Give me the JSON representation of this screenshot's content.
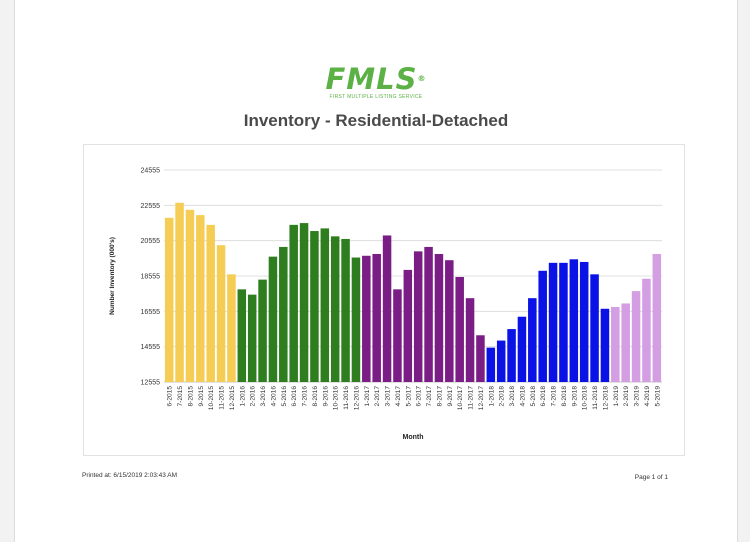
{
  "logo": {
    "mark": "FMLS",
    "reg": "®",
    "subtitle": "FIRST MULTIPLE LISTING SERVICE"
  },
  "title": "Inventory - Residential-Detached",
  "footer": {
    "printed": "Printed at: 6/15/2019 2:03:43 AM",
    "page": "Page 1 of 1"
  },
  "colors": {
    "2015": "#f5cd55",
    "2016": "#2e7d1e",
    "2017": "#7a1e86",
    "2018": "#0a12e6",
    "2019": "#d49ee2"
  },
  "chart_data": {
    "type": "bar",
    "title": "Inventory - Residential-Detached",
    "xlabel": "Month",
    "ylabel": "Number Inventory (000's)",
    "ylim": [
      12555,
      24555
    ],
    "yticks": [
      "24555",
      "22555",
      "20555",
      "18555",
      "16555",
      "14555",
      "12555"
    ],
    "grid": true,
    "categories": [
      "6-2015",
      "7-2015",
      "8-2015",
      "9-2015",
      "10-2015",
      "11-2015",
      "12-2015",
      "1-2016",
      "2-2016",
      "3-2016",
      "4-2016",
      "5-2016",
      "6-2016",
      "7-2016",
      "8-2016",
      "9-2016",
      "10-2016",
      "11-2016",
      "12-2016",
      "1-2017",
      "2-2017",
      "3-2017",
      "4-2017",
      "5-2017",
      "6-2017",
      "7-2017",
      "8-2017",
      "9-2017",
      "10-2017",
      "11-2017",
      "12-2017",
      "1-2018",
      "2-2018",
      "3-2018",
      "4-2018",
      "5-2018",
      "6-2018",
      "7-2018",
      "8-2018",
      "9-2018",
      "10-2018",
      "11-2018",
      "12-2018",
      "1-2019",
      "2-2019",
      "3-2019",
      "4-2019",
      "5-2019"
    ],
    "values": [
      21850,
      22700,
      22300,
      22000,
      21450,
      20300,
      18650,
      17800,
      17500,
      18350,
      19650,
      20200,
      21450,
      21550,
      21100,
      21250,
      20800,
      20650,
      19600,
      19700,
      19800,
      20850,
      17800,
      18900,
      19950,
      20200,
      19800,
      19450,
      18500,
      17300,
      15200,
      14500,
      14900,
      15550,
      16250,
      17300,
      18850,
      19300,
      19300,
      19500,
      19350,
      18650,
      16700,
      16800,
      17000,
      17700,
      18400,
      19800
    ],
    "groups": [
      "2015",
      "2015",
      "2015",
      "2015",
      "2015",
      "2015",
      "2015",
      "2016",
      "2016",
      "2016",
      "2016",
      "2016",
      "2016",
      "2016",
      "2016",
      "2016",
      "2016",
      "2016",
      "2016",
      "2017",
      "2017",
      "2017",
      "2017",
      "2017",
      "2017",
      "2017",
      "2017",
      "2017",
      "2017",
      "2017",
      "2017",
      "2018",
      "2018",
      "2018",
      "2018",
      "2018",
      "2018",
      "2018",
      "2018",
      "2018",
      "2018",
      "2018",
      "2018",
      "2019",
      "2019",
      "2019",
      "2019",
      "2019"
    ]
  }
}
